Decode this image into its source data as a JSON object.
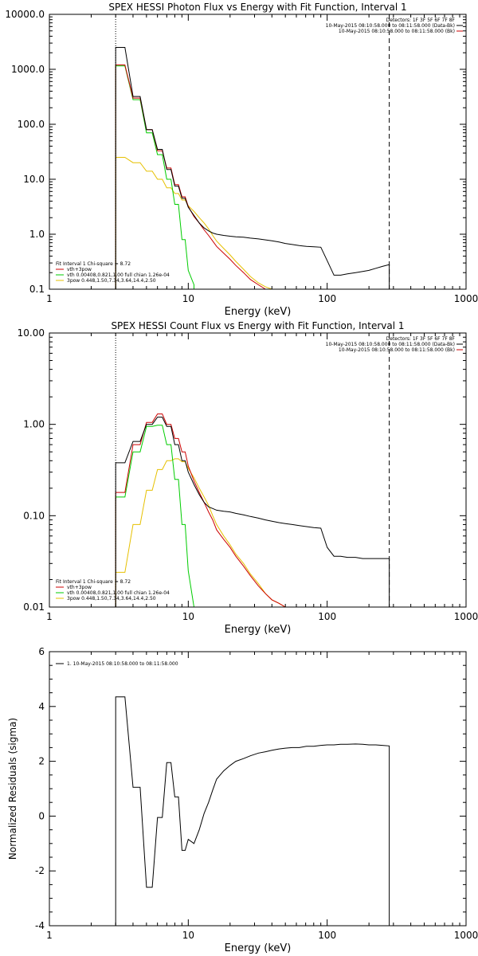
{
  "chart_data": [
    {
      "type": "line",
      "title": "SPEX HESSI Photon Flux vs Energy with Fit Function, Interval 1",
      "xlabel": "Energy (keV)",
      "ylabel": "",
      "x_scale": "log",
      "y_scale": "log",
      "xlim": [
        1,
        1000
      ],
      "ylim": [
        0.1,
        10000
      ],
      "x_ticks": [
        "1",
        "10",
        "100",
        "1000"
      ],
      "y_ticks": [
        {
          "v": 0.1,
          "label": "0.1"
        },
        {
          "v": 1,
          "label": "1.0"
        },
        {
          "v": 10,
          "label": "10.0"
        },
        {
          "v": 100,
          "label": "100.0"
        },
        {
          "v": 1000,
          "label": "1000.0"
        },
        {
          "v": 10000,
          "label": "10000.0"
        }
      ],
      "vlines": [
        {
          "x": 3.0,
          "style": "dotted"
        },
        {
          "x": 280,
          "style": "dashed"
        }
      ],
      "legend": {
        "placement": "bottom-left",
        "header": "Fit Interval 1    Chi-square = 8.72",
        "entries": [
          {
            "label": "vth+3pow",
            "color": "#cc0000"
          },
          {
            "label": "vth 0.00408,0.821,1.00  full chian 1.26e-04",
            "color": "#00cc00"
          },
          {
            "label": "3pow 0.448,1.50,7.34,3.64,14.4,2.50",
            "color": "#e6c000"
          }
        ]
      },
      "detector_info": {
        "placement": "top-right",
        "lines": [
          {
            "text": "Detectors: 1F 3F 5F 6F 7F 8F",
            "color": "#000000"
          },
          {
            "text": "10-May-2015 08:10:58.000 to 08:11:58.000 (Data-Bk)",
            "color": "#000000"
          },
          {
            "text": "10-May-2015 08:10:58.000 to 08:11:58.000 (Bk)",
            "color": "#cc0000"
          }
        ]
      },
      "series": [
        {
          "name": "Data-Bk",
          "color": "#000000",
          "x": [
            3.0,
            3.5,
            4.0,
            4.5,
            5.0,
            5.5,
            6.0,
            6.5,
            7.0,
            7.5,
            8.0,
            8.5,
            9.0,
            9.5,
            10.0,
            11.0,
            12.0,
            13.0,
            14.0,
            15.0,
            16.0,
            18.0,
            20.0,
            22.0,
            25.0,
            28.0,
            32.0,
            36.0,
            40.0,
            45.0,
            50.0,
            56.0,
            63.0,
            71.0,
            80.0,
            90.0,
            100.0,
            112.0,
            125.0,
            140.0,
            160.0,
            180.0,
            200.0,
            224.0,
            250.0,
            280.0
          ],
          "y": [
            2500,
            2500,
            320,
            320,
            80,
            80,
            35,
            35,
            15,
            15,
            7.5,
            7.5,
            4.5,
            4.5,
            3.1,
            2.2,
            1.6,
            1.3,
            1.15,
            1.05,
            1.0,
            0.95,
            0.92,
            0.9,
            0.88,
            0.85,
            0.82,
            0.79,
            0.76,
            0.72,
            0.68,
            0.65,
            0.62,
            0.6,
            0.59,
            0.58,
            0.33,
            0.18,
            0.18,
            0.19,
            0.2,
            0.21,
            0.22,
            0.24,
            0.26,
            0.28
          ]
        },
        {
          "name": "vth+3pow",
          "color": "#cc0000",
          "x": [
            3.0,
            3.5,
            4.0,
            4.5,
            5.0,
            5.5,
            6.0,
            6.5,
            7.0,
            7.5,
            8.0,
            8.5,
            9.0,
            9.5,
            10.0,
            11.0,
            12.0,
            13.0,
            14.0,
            15.0,
            16.0,
            18.0,
            20.0,
            22.0,
            25.0,
            28.0,
            32.0,
            36.0,
            40.0
          ],
          "y": [
            1200,
            1200,
            300,
            300,
            80,
            80,
            33,
            33,
            16,
            16,
            8,
            8,
            4.8,
            4.8,
            3.2,
            2.1,
            1.6,
            1.2,
            0.95,
            0.75,
            0.6,
            0.45,
            0.35,
            0.27,
            0.2,
            0.15,
            0.12,
            0.1,
            0.1
          ]
        },
        {
          "name": "vth",
          "color": "#00cc00",
          "x": [
            3.0,
            3.5,
            4.0,
            4.5,
            5.0,
            5.5,
            6.0,
            6.5,
            7.0,
            7.5,
            8.0,
            8.5,
            9.0,
            9.5,
            10.0,
            11.0
          ],
          "y": [
            1150,
            1150,
            280,
            280,
            70,
            70,
            28,
            28,
            10,
            10,
            3.5,
            3.5,
            0.8,
            0.8,
            0.22,
            0.12
          ]
        },
        {
          "name": "3pow",
          "color": "#e6c000",
          "x": [
            3.0,
            3.5,
            4.0,
            4.5,
            5.0,
            5.5,
            6.0,
            6.5,
            7.0,
            7.5,
            8.0,
            8.5,
            9.0,
            9.5,
            10.0,
            11.0,
            12.0,
            13.0,
            14.0,
            15.0,
            16.0,
            18.0,
            20.0,
            22.0,
            25.0,
            28.0,
            32.0,
            36.0,
            40.0
          ],
          "y": [
            25,
            25,
            20,
            20,
            14,
            14,
            10,
            10,
            7,
            7,
            5.5,
            5.5,
            4.2,
            4.2,
            3.3,
            2.6,
            2.0,
            1.6,
            1.25,
            0.95,
            0.75,
            0.55,
            0.42,
            0.32,
            0.23,
            0.17,
            0.13,
            0.11,
            0.1
          ]
        }
      ]
    },
    {
      "type": "line",
      "title": "SPEX HESSI Count Flux vs Energy with Fit Function, Interval 1",
      "xlabel": "Energy (keV)",
      "ylabel": "",
      "x_scale": "log",
      "y_scale": "log",
      "xlim": [
        1,
        1000
      ],
      "ylim": [
        0.01,
        10
      ],
      "x_ticks": [
        "1",
        "10",
        "100",
        "1000"
      ],
      "y_ticks": [
        {
          "v": 0.01,
          "label": "0.01"
        },
        {
          "v": 0.1,
          "label": "0.10"
        },
        {
          "v": 1,
          "label": "1.00"
        },
        {
          "v": 10,
          "label": "10.00"
        }
      ],
      "vlines": [
        {
          "x": 3.0,
          "style": "dotted"
        },
        {
          "x": 280,
          "style": "dashed"
        }
      ],
      "legend": {
        "placement": "bottom-left",
        "header": "Fit Interval 1    Chi-square = 8.72",
        "entries": [
          {
            "label": "vth+3pow",
            "color": "#cc0000"
          },
          {
            "label": "vth 0.00408,0.821,1.00  full chian 1.26e-04",
            "color": "#00cc00"
          },
          {
            "label": "3pow 0.448,1.50,7.34,3.64,14.4,2.50",
            "color": "#e6c000"
          }
        ]
      },
      "detector_info": {
        "placement": "top-right",
        "lines": [
          {
            "text": "Detectors: 1F 3F 5F 6F 7F 8F",
            "color": "#000000"
          },
          {
            "text": "10-May-2015 08:10:58.000 to 08:11:58.000 (Data-Bk)",
            "color": "#000000"
          },
          {
            "text": "10-May-2015 08:10:58.000 to 08:11:58.000 (Bk)",
            "color": "#cc0000"
          }
        ]
      },
      "series": [
        {
          "name": "Data-Bk",
          "color": "#000000",
          "x": [
            3.0,
            3.5,
            4.0,
            4.5,
            5.0,
            5.5,
            6.0,
            6.5,
            7.0,
            7.5,
            8.0,
            8.5,
            9.0,
            9.5,
            10.0,
            11.0,
            12.0,
            13.0,
            14.0,
            15.0,
            16.0,
            18.0,
            20.0,
            22.0,
            25.0,
            28.0,
            32.0,
            36.0,
            40.0,
            45.0,
            50.0,
            56.0,
            63.0,
            71.0,
            80.0,
            90.0,
            100.0,
            112.0,
            125.0,
            140.0,
            160.0,
            180.0,
            200.0,
            224.0,
            250.0,
            280.0
          ],
          "y": [
            0.38,
            0.38,
            0.65,
            0.65,
            1.0,
            1.0,
            1.2,
            1.2,
            0.95,
            0.95,
            0.6,
            0.6,
            0.4,
            0.4,
            0.3,
            0.22,
            0.17,
            0.14,
            0.125,
            0.12,
            0.115,
            0.112,
            0.11,
            0.106,
            0.102,
            0.098,
            0.094,
            0.09,
            0.087,
            0.084,
            0.082,
            0.08,
            0.078,
            0.076,
            0.074,
            0.073,
            0.045,
            0.036,
            0.036,
            0.035,
            0.035,
            0.034,
            0.034,
            0.034,
            0.034,
            0.034
          ]
        },
        {
          "name": "vth+3pow",
          "color": "#cc0000",
          "x": [
            3.0,
            3.5,
            4.0,
            4.5,
            5.0,
            5.5,
            6.0,
            6.5,
            7.0,
            7.5,
            8.0,
            8.5,
            9.0,
            9.5,
            10.0,
            11.0,
            12.0,
            13.0,
            14.0,
            15.0,
            16.0,
            18.0,
            20.0,
            22.0,
            25.0,
            28.0,
            32.0,
            36.0,
            40.0,
            45.0,
            50.0
          ],
          "y": [
            0.18,
            0.18,
            0.6,
            0.6,
            1.05,
            1.05,
            1.3,
            1.3,
            1.0,
            1.0,
            0.7,
            0.7,
            0.5,
            0.5,
            0.35,
            0.24,
            0.18,
            0.14,
            0.11,
            0.09,
            0.07,
            0.055,
            0.045,
            0.036,
            0.028,
            0.022,
            0.017,
            0.014,
            0.012,
            0.011,
            0.01
          ]
        },
        {
          "name": "vth",
          "color": "#00cc00",
          "x": [
            3.0,
            3.5,
            4.0,
            4.5,
            5.0,
            5.5,
            6.0,
            6.5,
            7.0,
            7.5,
            8.0,
            8.5,
            9.0,
            9.5,
            10.0,
            11.0
          ],
          "y": [
            0.16,
            0.16,
            0.5,
            0.5,
            0.95,
            0.95,
            0.98,
            0.98,
            0.6,
            0.6,
            0.25,
            0.25,
            0.08,
            0.08,
            0.025,
            0.01
          ]
        },
        {
          "name": "3pow",
          "color": "#e6c000",
          "x": [
            3.0,
            3.5,
            4.0,
            4.5,
            5.0,
            5.5,
            6.0,
            6.5,
            7.0,
            7.5,
            8.0,
            8.5,
            9.0,
            9.5,
            10.0,
            11.0,
            12.0,
            13.0,
            14.0,
            15.0,
            16.0,
            18.0,
            20.0,
            22.0,
            25.0,
            28.0,
            32.0,
            36.0,
            40.0,
            45.0,
            50.0
          ],
          "y": [
            0.024,
            0.024,
            0.08,
            0.08,
            0.19,
            0.19,
            0.32,
            0.32,
            0.4,
            0.4,
            0.42,
            0.42,
            0.39,
            0.39,
            0.33,
            0.26,
            0.2,
            0.16,
            0.13,
            0.1,
            0.08,
            0.06,
            0.048,
            0.038,
            0.03,
            0.023,
            0.018,
            0.014,
            0.012,
            0.011,
            0.01
          ]
        }
      ]
    },
    {
      "type": "line",
      "title": "",
      "xlabel": "Energy (keV)",
      "ylabel": "Normalized Residuals (sigma)",
      "x_scale": "log",
      "y_scale": "linear",
      "xlim": [
        1,
        1000
      ],
      "ylim": [
        -4,
        6
      ],
      "x_ticks": [
        "1",
        "10",
        "100",
        "1000"
      ],
      "y_ticks": [
        {
          "v": -4,
          "label": "-4"
        },
        {
          "v": -2,
          "label": "-2"
        },
        {
          "v": 0,
          "label": "0"
        },
        {
          "v": 2,
          "label": "2"
        },
        {
          "v": 4,
          "label": "4"
        },
        {
          "v": 6,
          "label": "6"
        }
      ],
      "legend": {
        "placement": "top-left",
        "header": "",
        "entries": [
          {
            "label": "1. 10-May-2015 08:10:58.000 to 08:11:58.000",
            "color": "#000000"
          }
        ]
      },
      "series": [
        {
          "name": "1. 10-May-2015 08:10:58.000 to 08:11:58.000",
          "color": "#000000",
          "x": [
            3.0,
            3.5,
            4.0,
            4.5,
            5.0,
            5.5,
            6.0,
            6.5,
            7.0,
            7.5,
            8.0,
            8.5,
            9.0,
            9.5,
            10.0,
            11.0,
            12.0,
            13.0,
            14.0,
            15.0,
            16.0,
            18.0,
            20.0,
            22.0,
            25.0,
            28.0,
            32.0,
            36.0,
            40.0,
            45.0,
            50.0,
            56.0,
            63.0,
            71.0,
            80.0,
            90.0,
            100.0,
            112.0,
            125.0,
            140.0,
            160.0,
            180.0,
            200.0,
            224.0,
            250.0,
            280.0
          ],
          "y": [
            4.35,
            4.35,
            1.05,
            1.05,
            -2.6,
            -2.6,
            -0.05,
            -0.05,
            1.95,
            1.95,
            0.7,
            0.7,
            -1.25,
            -1.25,
            -0.85,
            -1.0,
            -0.5,
            0.1,
            0.5,
            0.95,
            1.35,
            1.65,
            1.85,
            2.0,
            2.1,
            2.2,
            2.3,
            2.35,
            2.4,
            2.45,
            2.48,
            2.5,
            2.5,
            2.55,
            2.55,
            2.58,
            2.6,
            2.6,
            2.62,
            2.62,
            2.63,
            2.62,
            2.6,
            2.6,
            2.58,
            2.56
          ]
        }
      ]
    }
  ]
}
